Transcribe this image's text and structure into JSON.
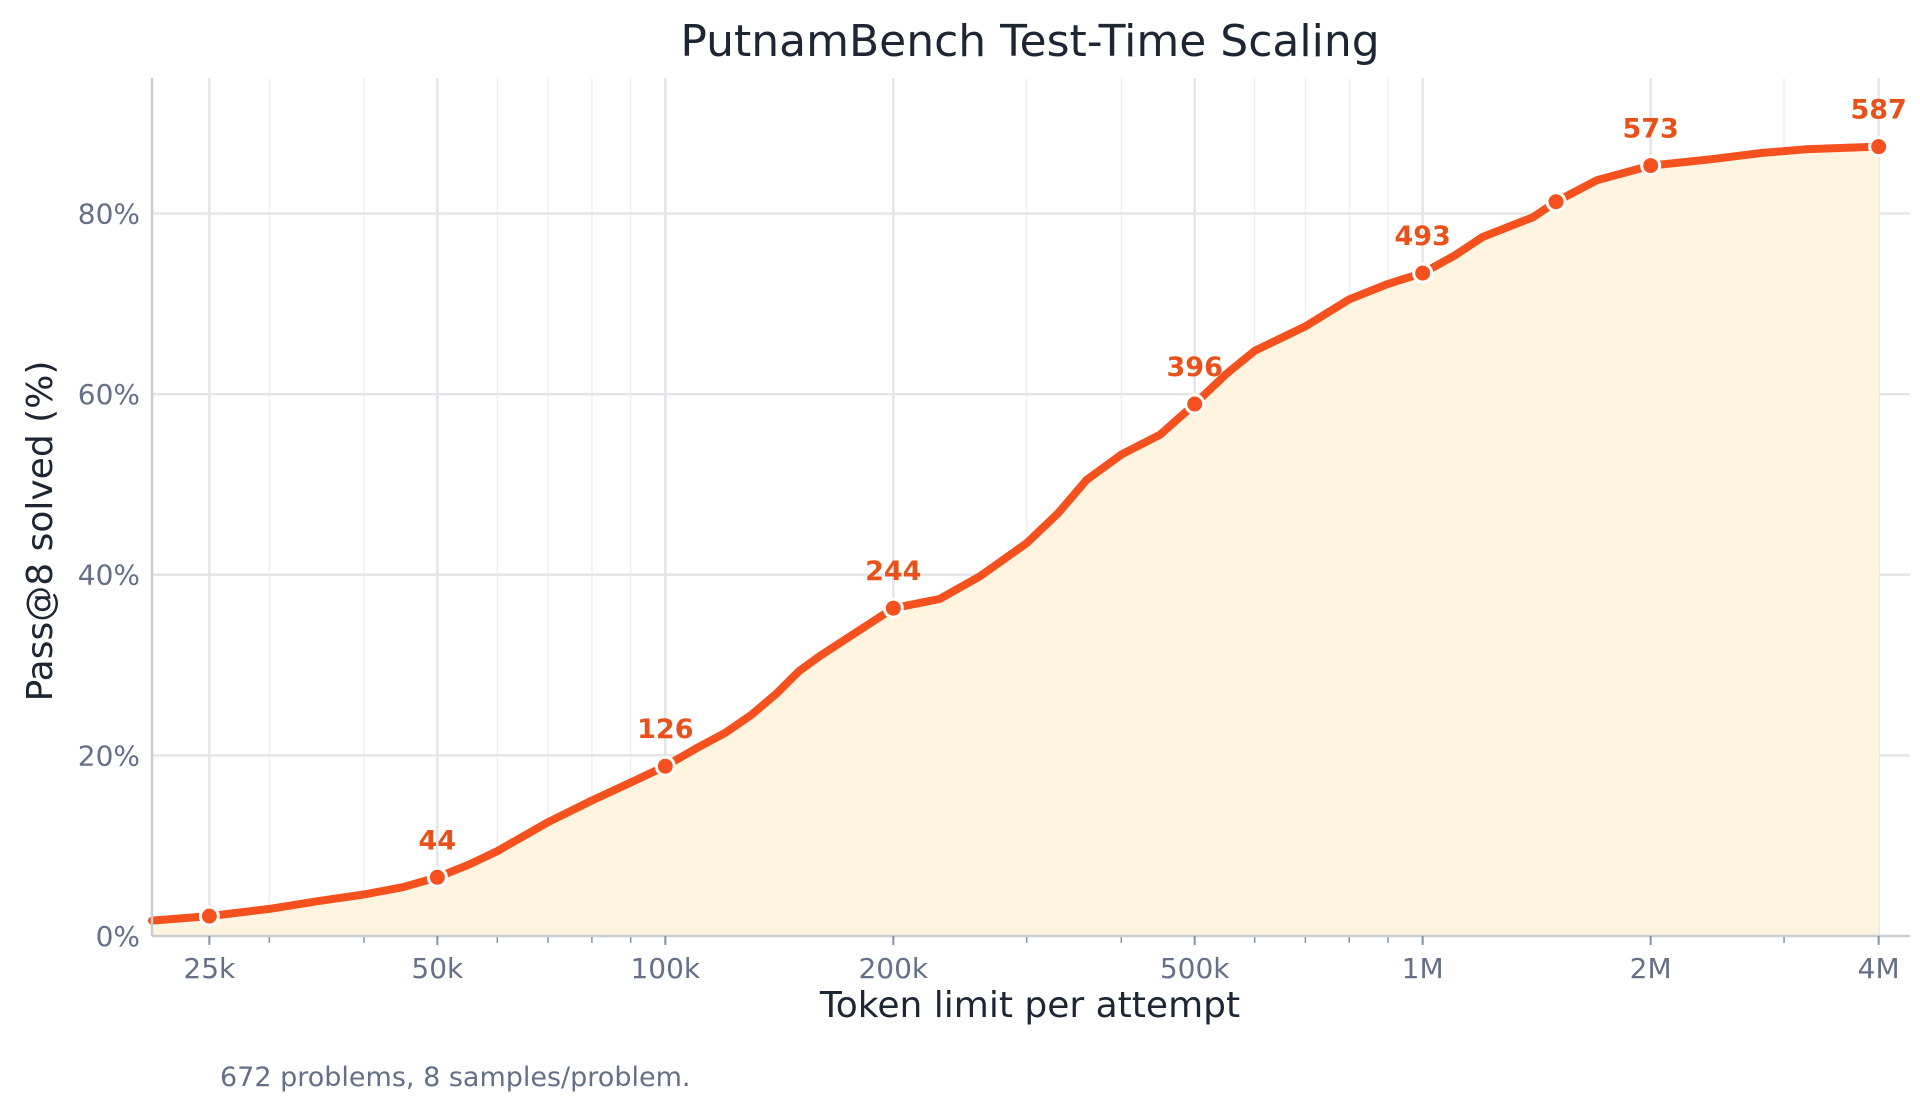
{
  "chart_data": {
    "type": "line",
    "title": "PutnamBench Test-Time Scaling",
    "xlabel": "Token limit per attempt",
    "ylabel": "Pass@8 solved (%)",
    "x_scale": "log",
    "xlim": [
      21000,
      4400000
    ],
    "ylim": [
      0,
      95
    ],
    "x_ticks": [
      {
        "value": 25000,
        "label": "25k"
      },
      {
        "value": 50000,
        "label": "50k"
      },
      {
        "value": 100000,
        "label": "100k"
      },
      {
        "value": 200000,
        "label": "200k"
      },
      {
        "value": 500000,
        "label": "500k"
      },
      {
        "value": 1000000,
        "label": "1M"
      },
      {
        "value": 2000000,
        "label": "2M"
      },
      {
        "value": 4000000,
        "label": "4M"
      }
    ],
    "y_ticks": [
      {
        "value": 0,
        "label": "0%"
      },
      {
        "value": 20,
        "label": "20%"
      },
      {
        "value": 40,
        "label": "40%"
      },
      {
        "value": 60,
        "label": "60%"
      },
      {
        "value": 80,
        "label": "80%"
      }
    ],
    "grid": true,
    "series": [
      {
        "x": [
          21000,
          25000,
          30000,
          35000,
          40000,
          45000,
          50000,
          55000,
          60000,
          70000,
          80000,
          90000,
          100000,
          110000,
          120000,
          130000,
          140000,
          150000,
          160000,
          180000,
          200000,
          230000,
          260000,
          300000,
          330000,
          360000,
          400000,
          450000,
          500000,
          550000,
          600000,
          700000,
          800000,
          900000,
          1000000,
          1100000,
          1200000,
          1400000,
          1500000,
          1700000,
          2000000,
          2400000,
          2800000,
          3200000,
          4000000
        ],
        "y": [
          1.7,
          2.2,
          3.0,
          3.9,
          4.6,
          5.4,
          6.5,
          7.9,
          9.4,
          12.6,
          15.0,
          17.0,
          18.8,
          20.8,
          22.5,
          24.5,
          26.8,
          29.3,
          31.0,
          33.8,
          36.3,
          37.3,
          39.8,
          43.5,
          46.8,
          50.5,
          53.3,
          55.5,
          58.9,
          62.2,
          64.8,
          67.5,
          70.5,
          72.2,
          73.4,
          75.3,
          77.4,
          79.6,
          81.3,
          83.7,
          85.3,
          86.0,
          86.7,
          87.1,
          87.4
        ]
      }
    ],
    "markers": [
      {
        "x": 25000,
        "y": 2.2,
        "label": ""
      },
      {
        "x": 50000,
        "y": 6.5,
        "label": "44"
      },
      {
        "x": 100000,
        "y": 18.8,
        "label": "126"
      },
      {
        "x": 200000,
        "y": 36.3,
        "label": "244"
      },
      {
        "x": 500000,
        "y": 58.9,
        "label": "396"
      },
      {
        "x": 1000000,
        "y": 73.4,
        "label": "493"
      },
      {
        "x": 1500000,
        "y": 81.3,
        "label": ""
      },
      {
        "x": 2000000,
        "y": 85.3,
        "label": "573"
      },
      {
        "x": 4000000,
        "y": 87.4,
        "label": "587"
      }
    ],
    "line_color": "#f4511e",
    "fill_color": "#fff4df",
    "label_color": "#e8521a"
  },
  "footnote": "672 problems, 8 samples/problem."
}
